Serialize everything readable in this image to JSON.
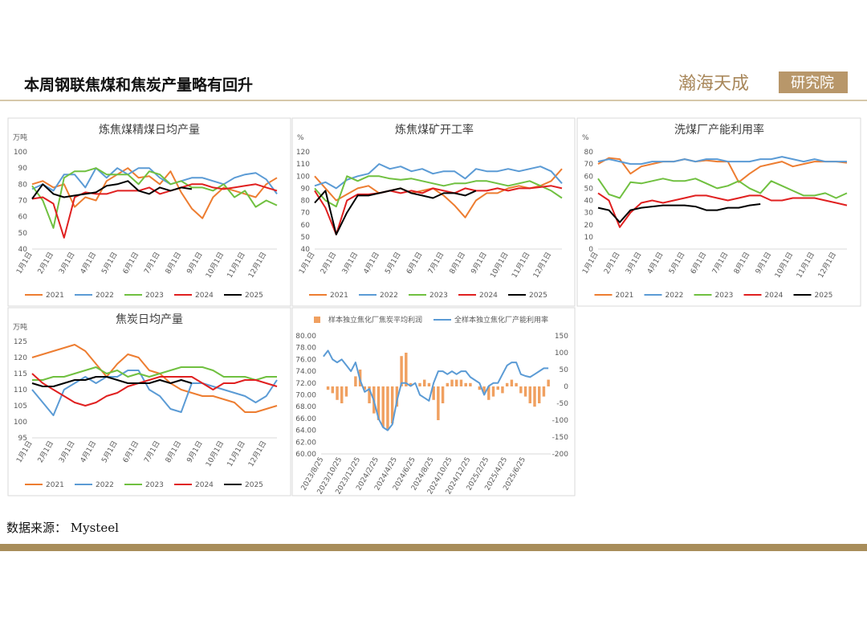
{
  "header": {
    "title": "本周钢联焦煤和焦炭产量略有回升",
    "logo": "瀚海天成",
    "logo_sub": "研究院"
  },
  "footer": {
    "source": "数据来源： Mysteel"
  },
  "chart_data": [
    {
      "type": "line",
      "title": "炼焦煤精煤日均产量",
      "unit": "万吨",
      "categories": [
        "1月1日",
        null,
        "2月1日",
        null,
        "3月1日",
        null,
        "4月1日",
        null,
        "5月1日",
        null,
        "6月1日",
        null,
        "7月1日",
        null,
        "8月1日",
        null,
        "9月1日",
        null,
        "10月1日",
        null,
        "11月1日",
        null,
        "12月1日",
        null
      ],
      "ylim": [
        40,
        100
      ],
      "yticks": [
        40,
        50,
        60,
        70,
        80,
        90,
        100
      ],
      "grid": false,
      "series": [
        {
          "name": "2021",
          "color": "#ed7d31",
          "values": [
            80,
            82,
            78,
            80,
            66,
            72,
            70,
            82,
            86,
            90,
            84,
            85,
            80,
            88,
            75,
            65,
            59,
            72,
            78,
            76,
            74,
            72,
            80,
            84
          ]
        },
        {
          "name": "2022",
          "color": "#5b9bd5",
          "values": [
            77,
            80,
            76,
            86,
            86,
            78,
            90,
            84,
            90,
            86,
            90,
            90,
            84,
            80,
            82,
            84,
            84,
            82,
            80,
            84,
            86,
            87,
            83,
            74
          ]
        },
        {
          "name": "2023",
          "color": "#70c040",
          "values": [
            79,
            70,
            53,
            84,
            88,
            88,
            90,
            86,
            86,
            86,
            80,
            88,
            86,
            80,
            82,
            78,
            78,
            76,
            80,
            72,
            76,
            66,
            70,
            67
          ]
        },
        {
          "name": "2024",
          "color": "#e02020",
          "values": [
            71,
            72,
            68,
            47,
            72,
            75,
            74,
            74,
            76,
            76,
            76,
            78,
            74,
            76,
            78,
            80,
            80,
            78,
            77,
            78,
            79,
            80,
            78,
            76
          ]
        },
        {
          "name": "2025",
          "color": "#000000",
          "values": [
            71,
            80,
            74,
            72,
            73,
            74,
            75,
            79,
            80,
            82,
            76,
            74,
            78,
            76,
            78,
            77,
            null,
            null,
            null,
            null,
            null,
            null,
            null,
            null
          ]
        }
      ]
    },
    {
      "type": "line",
      "title": "炼焦煤矿开工率",
      "unit": "%",
      "categories": [
        "1月1日",
        null,
        "2月1日",
        null,
        "3月1日",
        null,
        "4月1日",
        null,
        "5月1日",
        null,
        "6月1日",
        null,
        "7月1日",
        null,
        "8月1日",
        null,
        "9月1日",
        null,
        "10月1日",
        null,
        "11月1日",
        null,
        "12月1日",
        null
      ],
      "ylim": [
        40,
        120
      ],
      "yticks": [
        40,
        50,
        60,
        70,
        80,
        90,
        100,
        110,
        120
      ],
      "grid": false,
      "series": [
        {
          "name": "2021",
          "color": "#ed7d31",
          "values": [
            100,
            90,
            80,
            85,
            90,
            92,
            86,
            88,
            90,
            86,
            88,
            90,
            84,
            76,
            66,
            80,
            86,
            86,
            90,
            92,
            90,
            92,
            96,
            106
          ]
        },
        {
          "name": "2022",
          "color": "#5b9bd5",
          "values": [
            92,
            95,
            90,
            97,
            100,
            102,
            110,
            106,
            108,
            104,
            106,
            102,
            104,
            104,
            98,
            106,
            104,
            104,
            106,
            104,
            106,
            108,
            104,
            94
          ]
        },
        {
          "name": "2023",
          "color": "#70c040",
          "values": [
            90,
            80,
            75,
            100,
            96,
            100,
            100,
            98,
            97,
            98,
            96,
            94,
            92,
            94,
            94,
            96,
            96,
            94,
            92,
            94,
            96,
            92,
            88,
            82
          ]
        },
        {
          "name": "2024",
          "color": "#e02020",
          "values": [
            88,
            74,
            52,
            80,
            85,
            85,
            86,
            88,
            86,
            88,
            86,
            90,
            88,
            86,
            90,
            88,
            88,
            90,
            88,
            90,
            90,
            91,
            92,
            90
          ]
        },
        {
          "name": "2025",
          "color": "#000000",
          "values": [
            78,
            88,
            52,
            70,
            84,
            84,
            86,
            88,
            90,
            86,
            84,
            82,
            86,
            86,
            84,
            88,
            null,
            null,
            null,
            null,
            null,
            null,
            null,
            null
          ]
        }
      ]
    },
    {
      "type": "line",
      "title": "洗煤厂产能利用率",
      "unit": "%",
      "categories": [
        "1月1日",
        null,
        "2月1日",
        null,
        "3月1日",
        null,
        "4月1日",
        null,
        "5月1日",
        null,
        "6月1日",
        null,
        "7月1日",
        null,
        "8月1日",
        null,
        "9月1日",
        null,
        "10月1日",
        null,
        "11月1日",
        null,
        "12月1日",
        null
      ],
      "ylim": [
        0,
        80
      ],
      "yticks": [
        0,
        10,
        20,
        30,
        40,
        50,
        60,
        70,
        80
      ],
      "grid": false,
      "series": [
        {
          "name": "2021",
          "color": "#ed7d31",
          "values": [
            70,
            75,
            74,
            62,
            68,
            70,
            72,
            72,
            74,
            72,
            73,
            72,
            72,
            55,
            62,
            68,
            70,
            72,
            68,
            70,
            72,
            72,
            72,
            71
          ]
        },
        {
          "name": "2022",
          "color": "#5b9bd5",
          "values": [
            72,
            74,
            72,
            70,
            70,
            72,
            72,
            72,
            74,
            72,
            74,
            74,
            72,
            72,
            72,
            74,
            74,
            76,
            74,
            72,
            74,
            72,
            72,
            72
          ]
        },
        {
          "name": "2023",
          "color": "#70c040",
          "values": [
            58,
            45,
            42,
            55,
            54,
            56,
            58,
            56,
            56,
            58,
            54,
            50,
            52,
            56,
            50,
            46,
            56,
            52,
            48,
            44,
            44,
            46,
            42,
            46
          ]
        },
        {
          "name": "2024",
          "color": "#e02020",
          "values": [
            46,
            40,
            18,
            30,
            38,
            40,
            38,
            40,
            42,
            44,
            44,
            42,
            40,
            42,
            44,
            44,
            40,
            40,
            42,
            42,
            42,
            40,
            38,
            36
          ]
        },
        {
          "name": "2025",
          "color": "#000000",
          "values": [
            34,
            32,
            22,
            32,
            34,
            35,
            36,
            36,
            36,
            35,
            32,
            32,
            34,
            34,
            36,
            37,
            null,
            null,
            null,
            null,
            null,
            null,
            null,
            null
          ]
        }
      ]
    },
    {
      "type": "line",
      "title": "焦炭日均产量",
      "unit": "万吨",
      "categories": [
        "1月1日",
        null,
        "2月1日",
        null,
        "3月1日",
        null,
        "4月1日",
        null,
        "5月1日",
        null,
        "6月1日",
        null,
        "7月1日",
        null,
        "8月1日",
        null,
        "9月1日",
        null,
        "10月1日",
        null,
        "11月1日",
        null,
        "12月1日",
        null
      ],
      "ylim": [
        95,
        125
      ],
      "yticks": [
        95,
        100,
        105,
        110,
        115,
        120,
        125
      ],
      "grid": false,
      "series": [
        {
          "name": "2021",
          "color": "#ed7d31",
          "values": [
            120,
            121,
            122,
            123,
            124,
            122,
            118,
            114,
            118,
            121,
            120,
            116,
            115,
            112,
            110,
            109,
            108,
            108,
            107,
            106,
            103,
            103,
            104,
            105
          ]
        },
        {
          "name": "2022",
          "color": "#5b9bd5",
          "values": [
            110,
            106,
            102,
            110,
            112,
            114,
            112,
            114,
            114,
            116,
            116,
            110,
            108,
            104,
            103,
            112,
            112,
            111,
            110,
            109,
            108,
            106,
            108,
            113
          ]
        },
        {
          "name": "2023",
          "color": "#70c040",
          "values": [
            113,
            113,
            114,
            114,
            115,
            116,
            117,
            115,
            116,
            114,
            115,
            114,
            115,
            116,
            117,
            117,
            117,
            116,
            114,
            114,
            114,
            113,
            114,
            114
          ]
        },
        {
          "name": "2024",
          "color": "#e02020",
          "values": [
            115,
            112,
            110,
            108,
            106,
            105,
            106,
            108,
            109,
            111,
            112,
            113,
            114,
            114,
            114,
            114,
            112,
            110,
            112,
            112,
            113,
            113,
            112,
            111
          ]
        },
        {
          "name": "2025",
          "color": "#000000",
          "values": [
            112,
            111,
            111,
            112,
            113,
            113,
            114,
            114,
            113,
            112,
            112,
            112,
            113,
            112,
            113,
            112,
            null,
            null,
            null,
            null,
            null,
            null,
            null,
            null
          ]
        }
      ]
    },
    {
      "type": "combo",
      "categories": [
        "2023/8/25",
        null,
        null,
        null,
        "2023/10/25",
        null,
        null,
        null,
        "2023/12/25",
        null,
        null,
        null,
        "2024/2/25",
        null,
        null,
        null,
        "2024/4/25",
        null,
        null,
        null,
        "2024/6/25",
        null,
        null,
        null,
        "2024/8/25",
        null,
        null,
        null,
        "2024/10/25",
        null,
        null,
        null,
        "2024/12/25",
        null,
        null,
        null,
        "2025/2/25",
        null,
        null,
        null,
        "2025/4/25",
        null,
        null,
        null,
        "2025/6/25",
        null,
        null,
        null,
        null,
        null
      ],
      "ylim": [
        60,
        80
      ],
      "yticks": [
        {
          "value": 60,
          "label": "60.00"
        },
        {
          "value": 62,
          "label": "62.00"
        },
        {
          "value": 64,
          "label": "64.00"
        },
        {
          "value": 66,
          "label": "66.00"
        },
        {
          "value": 68,
          "label": "68.00"
        },
        {
          "value": 70,
          "label": "70.00"
        },
        {
          "value": 72,
          "label": "72.00"
        },
        {
          "value": 74,
          "label": "74.00"
        },
        {
          "value": 76,
          "label": "76.00"
        },
        {
          "value": 78,
          "label": "78.00"
        },
        {
          "value": 80,
          "label": "80.00"
        }
      ],
      "y2lim": [
        -200,
        150
      ],
      "y2ticks": [
        -200,
        -150,
        -100,
        -50,
        0,
        50,
        100,
        150
      ],
      "grid": false,
      "series": [
        {
          "name": "样本独立焦化厂焦炭平均利润",
          "mark": "bar",
          "axis": "y2",
          "color": "#f0a060",
          "values": [
            0,
            -10,
            -20,
            -40,
            -50,
            -30,
            0,
            30,
            50,
            -10,
            -50,
            -80,
            -100,
            -120,
            -130,
            -110,
            -60,
            90,
            100,
            10,
            0,
            10,
            20,
            10,
            -40,
            -100,
            -50,
            10,
            20,
            20,
            20,
            10,
            10,
            0,
            -10,
            -20,
            -40,
            -30,
            -10,
            -20,
            10,
            20,
            10,
            -20,
            -30,
            -50,
            -60,
            -50,
            -30,
            20
          ]
        },
        {
          "name": "全样本独立焦化厂产能利用率",
          "mark": "line",
          "color": "#5b9bd5",
          "values": [
            76.5,
            77.5,
            76,
            75.5,
            76,
            75,
            74,
            75.5,
            72.5,
            70.5,
            71,
            69,
            66,
            64.5,
            64,
            65,
            69,
            72,
            72,
            71.5,
            72,
            70,
            69.5,
            69,
            72,
            74,
            74,
            73.5,
            74,
            73.5,
            74,
            74,
            73,
            72.5,
            72,
            70,
            71.5,
            72,
            72,
            73.5,
            75,
            75.5,
            75.5,
            73.5,
            73.2,
            73,
            73.5,
            74,
            74.5,
            74.5
          ]
        }
      ]
    }
  ]
}
